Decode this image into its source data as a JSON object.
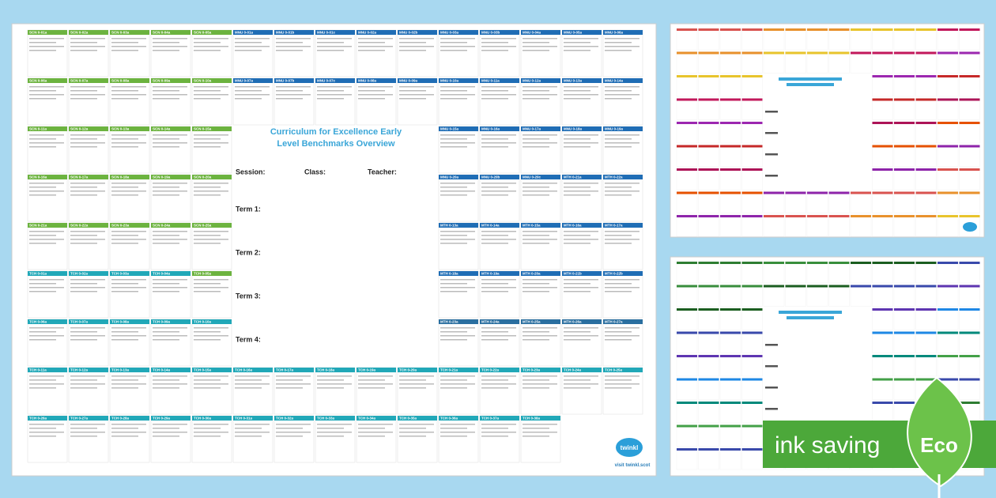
{
  "document": {
    "title": "Curriculum for Excellence Early Level Benchmarks Overview",
    "fields": [
      "Session:",
      "Class:",
      "Teacher:"
    ],
    "terms": [
      "Term 1:",
      "Term 2:",
      "Term 3:",
      "Term 4:"
    ],
    "brand": "twinkl",
    "website": "visit twinkl.scot",
    "badge": "ink saving",
    "badge_leaf": "Eco",
    "grid_rows": [
      [
        {
          "code": "SCN 0-01a",
          "color": "#6cb33f"
        },
        {
          "code": "SCN 0-02a",
          "color": "#6cb33f"
        },
        {
          "code": "SCN 0-03a",
          "color": "#6cb33f"
        },
        {
          "code": "SCN 0-04a",
          "color": "#6cb33f"
        },
        {
          "code": "SCN 0-05a",
          "color": "#6cb33f"
        },
        {
          "code": "MNU 0-01a",
          "color": "#1f6db5"
        },
        {
          "code": "MNU 0-01b",
          "color": "#1f6db5"
        },
        {
          "code": "MNU 0-01c",
          "color": "#1f6db5"
        },
        {
          "code": "MNU 0-02a",
          "color": "#1f6db5"
        },
        {
          "code": "MNU 0-02b",
          "color": "#1f6db5"
        },
        {
          "code": "MNU 0-03a",
          "color": "#1f6db5"
        },
        {
          "code": "MNU 0-03b",
          "color": "#1f6db5"
        },
        {
          "code": "MNU 0-04a",
          "color": "#1f6db5"
        },
        {
          "code": "MNU 0-05a",
          "color": "#1f6db5"
        },
        {
          "code": "MNU 0-06a",
          "color": "#1f6db5"
        }
      ],
      [
        {
          "code": "SCN 0-06a",
          "color": "#6cb33f"
        },
        {
          "code": "SCN 0-07a",
          "color": "#6cb33f"
        },
        {
          "code": "SCN 0-08a",
          "color": "#6cb33f"
        },
        {
          "code": "SCN 0-09a",
          "color": "#6cb33f"
        },
        {
          "code": "SCN 0-10a",
          "color": "#6cb33f"
        },
        {
          "code": "MNU 0-07a",
          "color": "#1f6db5"
        },
        {
          "code": "MNU 0-07b",
          "color": "#1f6db5"
        },
        {
          "code": "MNU 0-07c",
          "color": "#1f6db5"
        },
        {
          "code": "MNU 0-08a",
          "color": "#1f6db5"
        },
        {
          "code": "MNU 0-09a",
          "color": "#1f6db5"
        },
        {
          "code": "MNU 0-10a",
          "color": "#1f6db5"
        },
        {
          "code": "MNU 0-11a",
          "color": "#1f6db5"
        },
        {
          "code": "MNU 0-12a",
          "color": "#1f6db5"
        },
        {
          "code": "MNU 0-13a",
          "color": "#1f6db5"
        },
        {
          "code": "MNU 0-14a",
          "color": "#1f6db5"
        }
      ],
      [
        {
          "code": "SCN 0-11a",
          "color": "#6cb33f"
        },
        {
          "code": "SCN 0-12a",
          "color": "#6cb33f"
        },
        {
          "code": "SCN 0-13a",
          "color": "#6cb33f"
        },
        {
          "code": "SCN 0-14a",
          "color": "#6cb33f"
        },
        {
          "code": "SCN 0-15a",
          "color": "#6cb33f"
        },
        null,
        null,
        null,
        null,
        null,
        {
          "code": "MNU 0-15a",
          "color": "#1f6db5"
        },
        {
          "code": "MNU 0-16a",
          "color": "#1f6db5"
        },
        {
          "code": "MNU 0-17a",
          "color": "#1f6db5"
        },
        {
          "code": "MNU 0-18a",
          "color": "#1f6db5"
        },
        {
          "code": "MNU 0-19a",
          "color": "#1f6db5"
        }
      ],
      [
        {
          "code": "SCN 0-16a",
          "color": "#6cb33f"
        },
        {
          "code": "SCN 0-17a",
          "color": "#6cb33f"
        },
        {
          "code": "SCN 0-18a",
          "color": "#6cb33f"
        },
        {
          "code": "SCN 0-19a",
          "color": "#6cb33f"
        },
        {
          "code": "SCN 0-20a",
          "color": "#6cb33f"
        },
        null,
        null,
        null,
        null,
        null,
        {
          "code": "MNU 0-20a",
          "color": "#1f6db5"
        },
        {
          "code": "MNU 0-20b",
          "color": "#1f6db5"
        },
        {
          "code": "MNU 0-20c",
          "color": "#1f6db5"
        },
        {
          "code": "MTH 0-21a",
          "color": "#1f6db5"
        },
        {
          "code": "MTH 0-22a",
          "color": "#1f6db5"
        }
      ],
      [
        {
          "code": "SCN 0-21a",
          "color": "#6cb33f"
        },
        {
          "code": "SCN 0-22a",
          "color": "#6cb33f"
        },
        {
          "code": "SCN 0-23a",
          "color": "#6cb33f"
        },
        {
          "code": "SCN 0-24a",
          "color": "#6cb33f"
        },
        {
          "code": "SCN 0-25a",
          "color": "#6cb33f"
        },
        null,
        null,
        null,
        null,
        null,
        {
          "code": "MTH 0-13a",
          "color": "#1f6db5"
        },
        {
          "code": "MTH 0-14a",
          "color": "#1f6db5"
        },
        {
          "code": "MTH 0-15a",
          "color": "#1f6db5"
        },
        {
          "code": "MTH 0-16a",
          "color": "#1f6db5"
        },
        {
          "code": "MTH 0-17a",
          "color": "#1f6db5"
        }
      ],
      [
        {
          "code": "TCH 0-01a",
          "color": "#21a8b8"
        },
        {
          "code": "TCH 0-02a",
          "color": "#21a8b8"
        },
        {
          "code": "TCH 0-03a",
          "color": "#21a8b8"
        },
        {
          "code": "TCH 0-04a",
          "color": "#21a8b8"
        },
        {
          "code": "TCH 0-05a",
          "color": "#6cb33f"
        },
        null,
        null,
        null,
        null,
        null,
        {
          "code": "MTH 0-18a",
          "color": "#1f6db5"
        },
        {
          "code": "MTH 0-19a",
          "color": "#1f6db5"
        },
        {
          "code": "MTH 0-20a",
          "color": "#1f6db5"
        },
        {
          "code": "MTH 0-21b",
          "color": "#1f6db5"
        },
        {
          "code": "MTH 0-22b",
          "color": "#1f6db5"
        }
      ],
      [
        {
          "code": "TCH 0-06a",
          "color": "#21a8b8"
        },
        {
          "code": "TCH 0-07a",
          "color": "#21a8b8"
        },
        {
          "code": "TCH 0-08a",
          "color": "#21a8b8"
        },
        {
          "code": "TCH 0-09a",
          "color": "#21a8b8"
        },
        {
          "code": "TCH 0-10a",
          "color": "#21a8b8"
        },
        null,
        null,
        null,
        null,
        null,
        {
          "code": "MTH 0-23a",
          "color": "#2a6fa0"
        },
        {
          "code": "MTH 0-24a",
          "color": "#2a6fa0"
        },
        {
          "code": "MTH 0-25a",
          "color": "#2a6fa0"
        },
        {
          "code": "MTH 0-26a",
          "color": "#2a6fa0"
        },
        {
          "code": "MTH 0-27a",
          "color": "#2a6fa0"
        }
      ],
      [
        {
          "code": "TCH 0-11a",
          "color": "#21a8b8"
        },
        {
          "code": "TCH 0-12a",
          "color": "#21a8b8"
        },
        {
          "code": "TCH 0-13a",
          "color": "#21a8b8"
        },
        {
          "code": "TCH 0-14a",
          "color": "#21a8b8"
        },
        {
          "code": "TCH 0-15a",
          "color": "#21a8b8"
        },
        {
          "code": "TCH 0-16a",
          "color": "#21a8b8"
        },
        {
          "code": "TCH 0-17a",
          "color": "#21a8b8"
        },
        {
          "code": "TCH 0-18a",
          "color": "#21a8b8"
        },
        {
          "code": "TCH 0-19a",
          "color": "#21a8b8"
        },
        {
          "code": "TCH 0-20a",
          "color": "#21a8b8"
        },
        {
          "code": "TCH 0-21a",
          "color": "#21a8b8"
        },
        {
          "code": "TCH 0-22a",
          "color": "#21a8b8"
        },
        {
          "code": "TCH 0-23a",
          "color": "#21a8b8"
        },
        {
          "code": "TCH 0-24a",
          "color": "#21a8b8"
        },
        {
          "code": "TCH 0-25a",
          "color": "#21a8b8"
        }
      ],
      [
        {
          "code": "TCH 0-26a",
          "color": "#21a8b8"
        },
        {
          "code": "TCH 0-27a",
          "color": "#21a8b8"
        },
        {
          "code": "TCH 0-28a",
          "color": "#21a8b8"
        },
        {
          "code": "TCH 0-29a",
          "color": "#21a8b8"
        },
        {
          "code": "TCH 0-30a",
          "color": "#21a8b8"
        },
        {
          "code": "TCH 0-31a",
          "color": "#21a8b8"
        },
        {
          "code": "TCH 0-32a",
          "color": "#21a8b8"
        },
        {
          "code": "TCH 0-33a",
          "color": "#21a8b8"
        },
        {
          "code": "TCH 0-34a",
          "color": "#21a8b8"
        },
        {
          "code": "TCH 0-35a",
          "color": "#21a8b8"
        },
        {
          "code": "TCH 0-36a",
          "color": "#21a8b8"
        },
        {
          "code": "TCH 0-37a",
          "color": "#21a8b8"
        },
        {
          "code": "TCH 0-38a",
          "color": "#21a8b8"
        },
        null,
        null
      ]
    ]
  }
}
